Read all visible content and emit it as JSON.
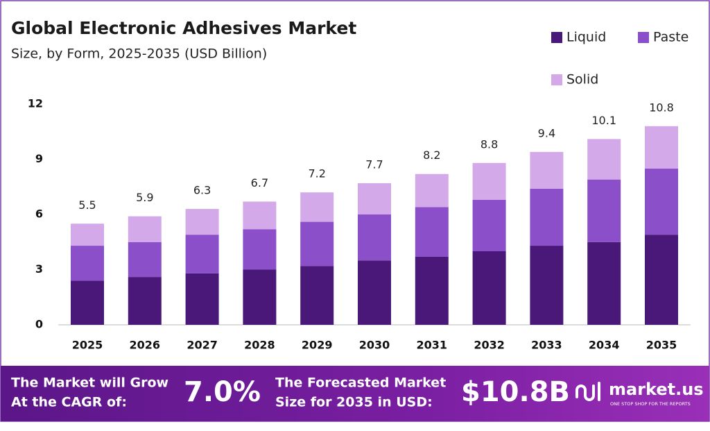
{
  "chart_data": {
    "type": "stacked-bar",
    "title": "Global Electronic Adhesives Market",
    "subtitle": "Size, by Form, 2025-2035 (USD Billion)",
    "categories": [
      "2025",
      "2026",
      "2027",
      "2028",
      "2029",
      "2030",
      "2031",
      "2032",
      "2033",
      "2034",
      "2035"
    ],
    "series": [
      {
        "name": "Liquid",
        "color": "#4a1878",
        "values": [
          2.4,
          2.6,
          2.8,
          3.0,
          3.2,
          3.5,
          3.7,
          4.0,
          4.3,
          4.5,
          4.9
        ]
      },
      {
        "name": "Paste",
        "color": "#8a4fc9",
        "values": [
          1.9,
          1.9,
          2.1,
          2.2,
          2.4,
          2.5,
          2.7,
          2.8,
          3.1,
          3.4,
          3.6
        ]
      },
      {
        "name": "Solid",
        "color": "#d3a9ea",
        "values": [
          1.2,
          1.4,
          1.4,
          1.5,
          1.6,
          1.7,
          1.8,
          2.0,
          2.0,
          2.2,
          2.3
        ]
      }
    ],
    "totals": [
      5.5,
      5.9,
      6.3,
      6.7,
      7.2,
      7.7,
      8.2,
      8.8,
      9.4,
      10.1,
      10.8
    ],
    "ylim": [
      0,
      12
    ],
    "yticks": [
      0,
      3,
      6,
      9,
      12
    ],
    "grid": false,
    "legend": "top-right"
  },
  "footer": {
    "cagr_text": [
      "The Market will Grow",
      "At the CAGR of:"
    ],
    "cagr_value": "7.0%",
    "forecast_text": [
      "The Forecasted Market",
      "Size for 2035 in USD:"
    ],
    "forecast_value": "$10.8B",
    "brand": "market.us",
    "tagline": "ONE STOP SHOP FOR THE REPORTS"
  }
}
